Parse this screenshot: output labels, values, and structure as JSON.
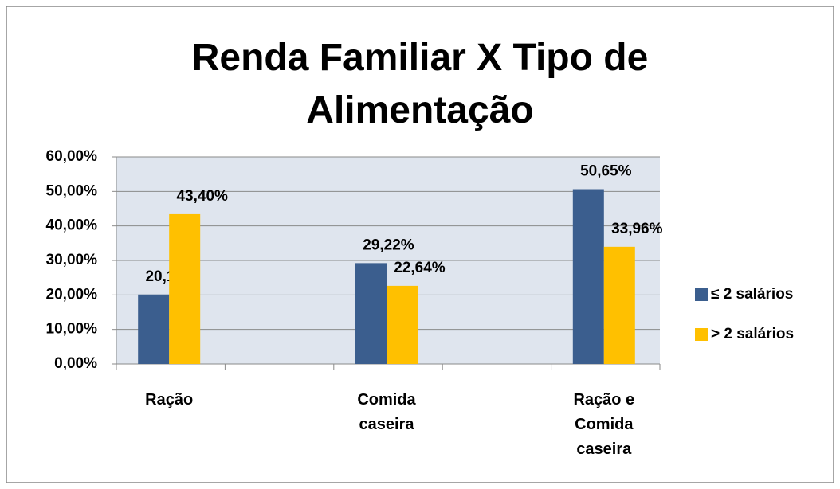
{
  "chart_data": {
    "type": "bar",
    "title": "Renda Familiar X Tipo de Alimentação",
    "categories": [
      "Ração",
      "Comida caseira",
      "Ração e Comida caseira"
    ],
    "series": [
      {
        "name": "≤ 2 salários",
        "color": "#3b5e8e",
        "values": [
          20.13,
          29.22,
          50.65
        ],
        "value_labels": [
          "20,13%",
          "29,22%",
          "50,65%"
        ]
      },
      {
        "name": "> 2  salários",
        "color": "#ffc000",
        "values": [
          43.4,
          22.64,
          33.96
        ],
        "value_labels": [
          "43,40%",
          "22,64%",
          "33,96%"
        ]
      }
    ],
    "ylim": [
      0,
      60
    ],
    "yticks": [
      {
        "value": 0,
        "label": "0,00%"
      },
      {
        "value": 10,
        "label": "10,00%"
      },
      {
        "value": 20,
        "label": "20,00%"
      },
      {
        "value": 30,
        "label": "30,00%"
      },
      {
        "value": 40,
        "label": "40,00%"
      },
      {
        "value": 50,
        "label": "50,00%"
      },
      {
        "value": 60,
        "label": "60,00%"
      }
    ],
    "grid": true,
    "legend": "right"
  }
}
